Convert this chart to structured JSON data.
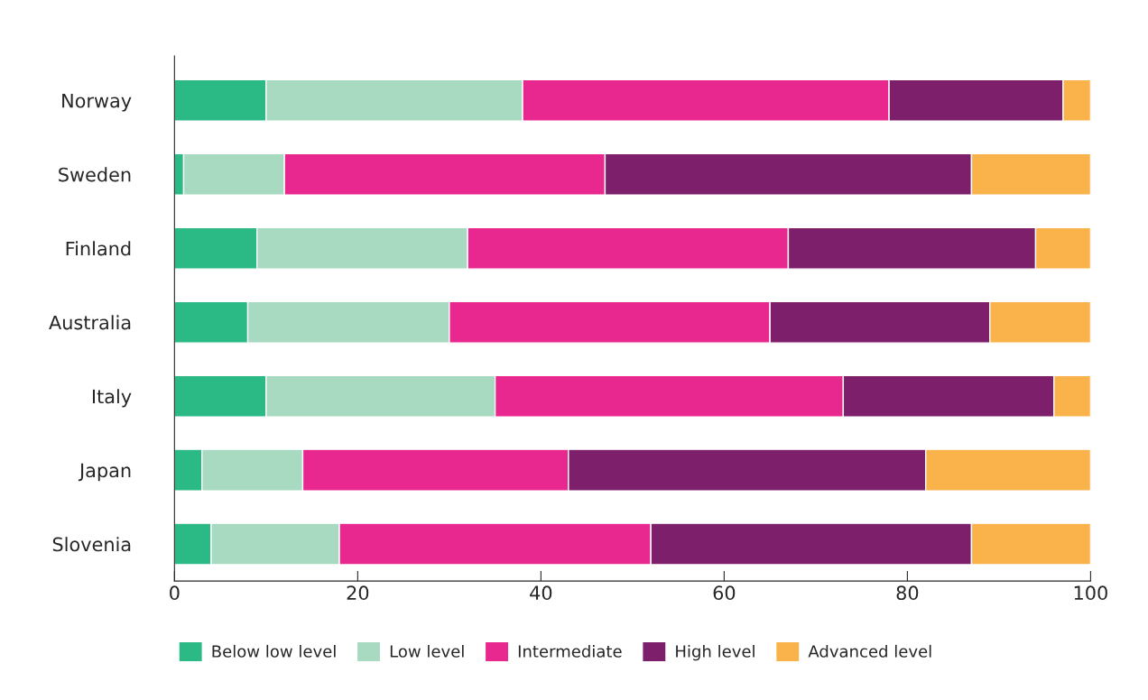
{
  "chart_data": {
    "type": "bar",
    "orientation": "horizontal",
    "stacked": true,
    "categories": [
      "Norway",
      "Sweden",
      "Finland",
      "Australia",
      "Italy",
      "Japan",
      "Slovenia"
    ],
    "series": [
      {
        "name": "Below low level",
        "color": "#2bb985",
        "values": [
          10,
          1,
          9,
          8,
          10,
          3,
          4
        ]
      },
      {
        "name": "Low level",
        "color": "#a8d9c1",
        "values": [
          28,
          11,
          23,
          22,
          25,
          11,
          14
        ]
      },
      {
        "name": "Intermediate",
        "color": "#e8288f",
        "values": [
          40,
          35,
          35,
          35,
          38,
          29,
          34
        ]
      },
      {
        "name": "High level",
        "color": "#7d1f6b",
        "values": [
          19,
          40,
          27,
          24,
          23,
          39,
          35
        ]
      },
      {
        "name": "Advanced level",
        "color": "#fab34a",
        "values": [
          3,
          13,
          6,
          11,
          4,
          18,
          13
        ]
      }
    ],
    "xlim": [
      0,
      100
    ],
    "xticks": [
      0,
      20,
      40,
      60,
      80,
      100
    ],
    "grid": false,
    "legend": "bottom"
  }
}
